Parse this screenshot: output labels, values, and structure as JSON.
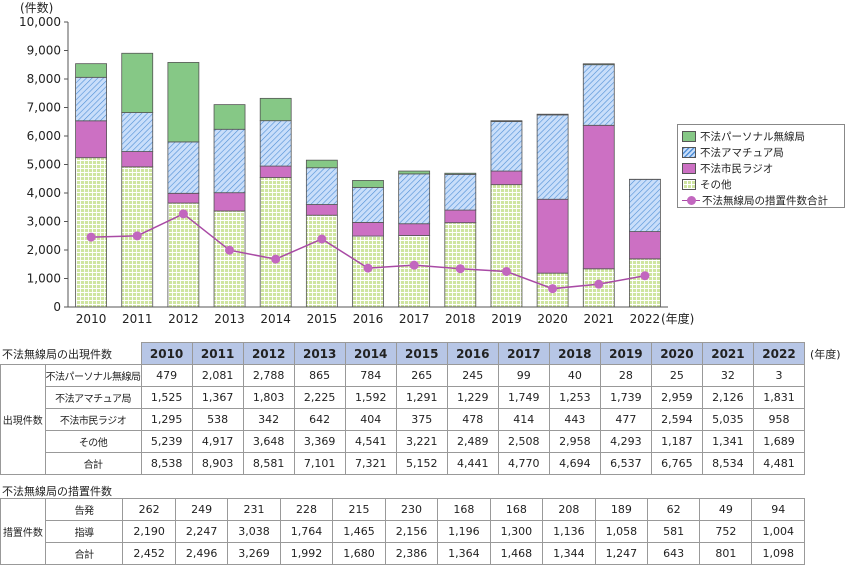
{
  "chart_data": {
    "type": "bar",
    "stacked": true,
    "categories": [
      "2010",
      "2011",
      "2012",
      "2013",
      "2014",
      "2015",
      "2016",
      "2017",
      "2018",
      "2019",
      "2020",
      "2021",
      "2022"
    ],
    "xlabel": "(年度)",
    "ylabel": "(件数)",
    "ylim": [
      0,
      10000
    ],
    "yticks": [
      "0",
      "1,000",
      "2,000",
      "3,000",
      "4,000",
      "5,000",
      "6,000",
      "7,000",
      "8,000",
      "9,000",
      "10,000"
    ],
    "grid": false,
    "legend": "right",
    "series": [
      {
        "name": "その他",
        "values": [
          5239,
          4917,
          3648,
          3369,
          4541,
          3221,
          2489,
          2508,
          2958,
          4293,
          1187,
          1341,
          1689
        ],
        "color": "#cfe5a0",
        "pattern": "grid"
      },
      {
        "name": "不法市民ラジオ",
        "values": [
          1295,
          538,
          342,
          642,
          404,
          375,
          478,
          414,
          443,
          477,
          2594,
          5035,
          958
        ],
        "color": "#cc70c3",
        "pattern": "solid"
      },
      {
        "name": "不法アマチュア局",
        "values": [
          1525,
          1367,
          1803,
          2225,
          1592,
          1291,
          1229,
          1749,
          1253,
          1739,
          2959,
          2126,
          1831
        ],
        "color": "#bdd6f2",
        "pattern": "hatch"
      },
      {
        "name": "不法パーソナル無線局",
        "values": [
          479,
          2081,
          2788,
          865,
          784,
          265,
          245,
          99,
          40,
          28,
          25,
          32,
          3
        ],
        "color": "#86c886",
        "pattern": "solid"
      }
    ],
    "line": {
      "name": "不法無線局の措置件数合計",
      "values": [
        2452,
        2496,
        3269,
        1992,
        1680,
        2386,
        1364,
        1468,
        1344,
        1247,
        643,
        801,
        1098
      ],
      "color": "#c267bf"
    }
  },
  "legend_order": [
    "不法パーソナル無線局",
    "不法アマチュア局",
    "不法市民ラジオ",
    "その他",
    "不法無線局の措置件数合計"
  ],
  "table1": {
    "title": "不法無線局の出現件数",
    "unit": "(年度)",
    "group_label": "出現件数",
    "years": [
      "2010",
      "2011",
      "2012",
      "2013",
      "2014",
      "2015",
      "2016",
      "2017",
      "2018",
      "2019",
      "2020",
      "2021",
      "2022"
    ],
    "rows": [
      {
        "label": "不法パーソナル無線局",
        "values": [
          "479",
          "2,081",
          "2,788",
          "865",
          "784",
          "265",
          "245",
          "99",
          "40",
          "28",
          "25",
          "32",
          "3"
        ]
      },
      {
        "label": "不法アマチュア局",
        "values": [
          "1,525",
          "1,367",
          "1,803",
          "2,225",
          "1,592",
          "1,291",
          "1,229",
          "1,749",
          "1,253",
          "1,739",
          "2,959",
          "2,126",
          "1,831"
        ]
      },
      {
        "label": "不法市民ラジオ",
        "values": [
          "1,295",
          "538",
          "342",
          "642",
          "404",
          "375",
          "478",
          "414",
          "443",
          "477",
          "2,594",
          "5,035",
          "958"
        ]
      },
      {
        "label": "その他",
        "values": [
          "5,239",
          "4,917",
          "3,648",
          "3,369",
          "4,541",
          "3,221",
          "2,489",
          "2,508",
          "2,958",
          "4,293",
          "1,187",
          "1,341",
          "1,689"
        ]
      },
      {
        "label": "合計",
        "values": [
          "8,538",
          "8,903",
          "8,581",
          "7,101",
          "7,321",
          "5,152",
          "4,441",
          "4,770",
          "4,694",
          "6,537",
          "6,765",
          "8,534",
          "4,481"
        ]
      }
    ]
  },
  "table2": {
    "title": "不法無線局の措置件数",
    "group_label": "措置件数",
    "rows": [
      {
        "label": "告発",
        "values": [
          "262",
          "249",
          "231",
          "228",
          "215",
          "230",
          "168",
          "168",
          "208",
          "189",
          "62",
          "49",
          "94"
        ]
      },
      {
        "label": "指導",
        "values": [
          "2,190",
          "2,247",
          "3,038",
          "1,764",
          "1,465",
          "2,156",
          "1,196",
          "1,300",
          "1,136",
          "1,058",
          "581",
          "752",
          "1,004"
        ]
      },
      {
        "label": "合計",
        "values": [
          "2,452",
          "2,496",
          "3,269",
          "1,992",
          "1,680",
          "2,386",
          "1,364",
          "1,468",
          "1,344",
          "1,247",
          "643",
          "801",
          "1,098"
        ]
      }
    ]
  }
}
